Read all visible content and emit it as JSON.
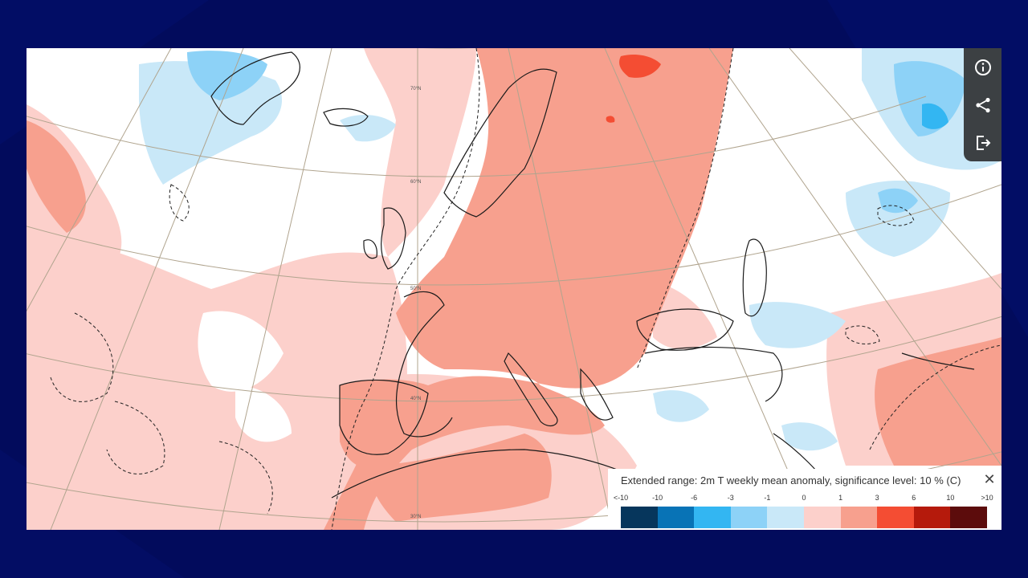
{
  "legend": {
    "title": "Extended range: 2m T weekly mean anomaly, significance level: 10 % (C)",
    "close_icon": "close-icon",
    "labels": [
      "<-10",
      "-10",
      "-6",
      "-3",
      "-1",
      "0",
      "1",
      "3",
      "6",
      "10",
      ">10"
    ],
    "colors": [
      "#06365c",
      "#0873b6",
      "#33b6f2",
      "#8dd2f7",
      "#c9e8f8",
      "#fcd0cb",
      "#f7a08e",
      "#f44d33",
      "#b51a0c",
      "#5c0c0c"
    ]
  },
  "toolbar": {
    "buttons": [
      {
        "name": "info",
        "icon": "info-icon"
      },
      {
        "name": "share",
        "icon": "share-icon"
      },
      {
        "name": "export",
        "icon": "export-icon"
      }
    ]
  },
  "map": {
    "graticule_labels": [
      "70°N",
      "60°N",
      "50°N",
      "40°N",
      "30°N"
    ],
    "colors": {
      "light_red": "#fcd0cb",
      "mid_red": "#f7a08e",
      "red": "#f44d33",
      "light_blue": "#c9e8f8",
      "mid_blue": "#8dd2f7",
      "blue": "#33b6f2"
    }
  }
}
